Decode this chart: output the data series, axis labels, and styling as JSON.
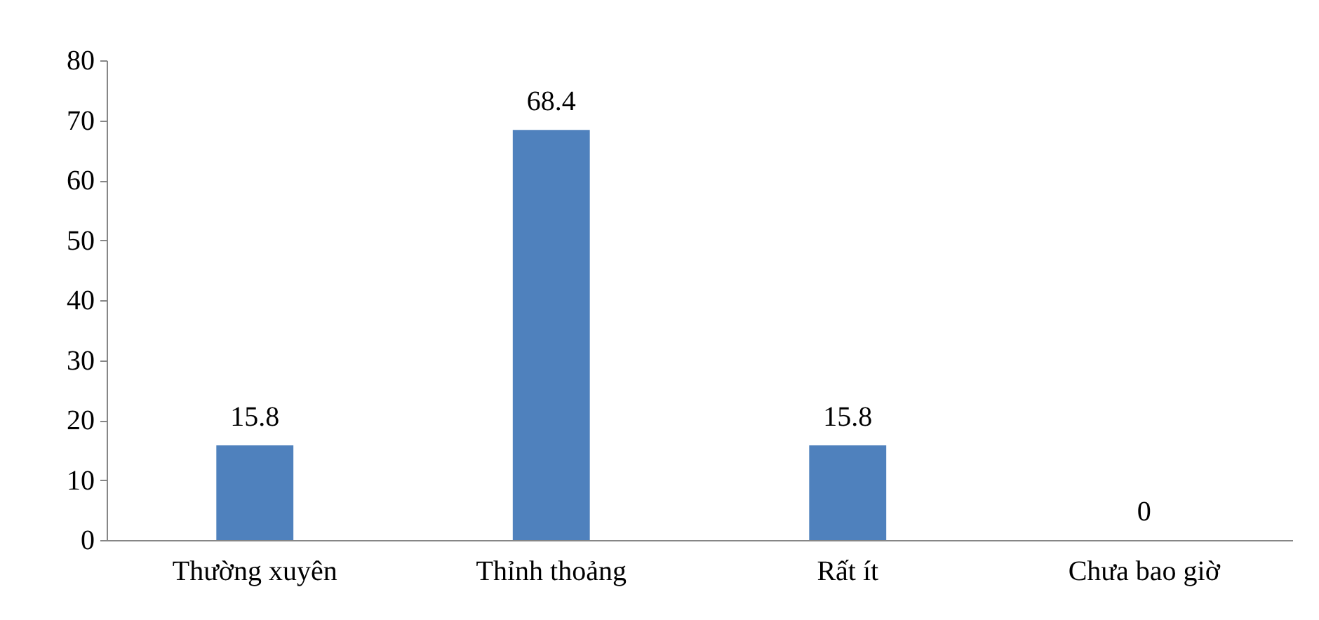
{
  "chart_data": {
    "type": "bar",
    "categories": [
      "Thường xuyên",
      "Thỉnh thoảng",
      "Rất ít",
      "Chưa bao giờ"
    ],
    "values": [
      15.8,
      68.4,
      15.8,
      0
    ],
    "color": "#4f81bd",
    "ylim": [
      0,
      80
    ],
    "yticks": [
      0,
      10,
      20,
      30,
      40,
      50,
      60,
      70,
      80
    ],
    "data_labels": true,
    "grid": false
  }
}
